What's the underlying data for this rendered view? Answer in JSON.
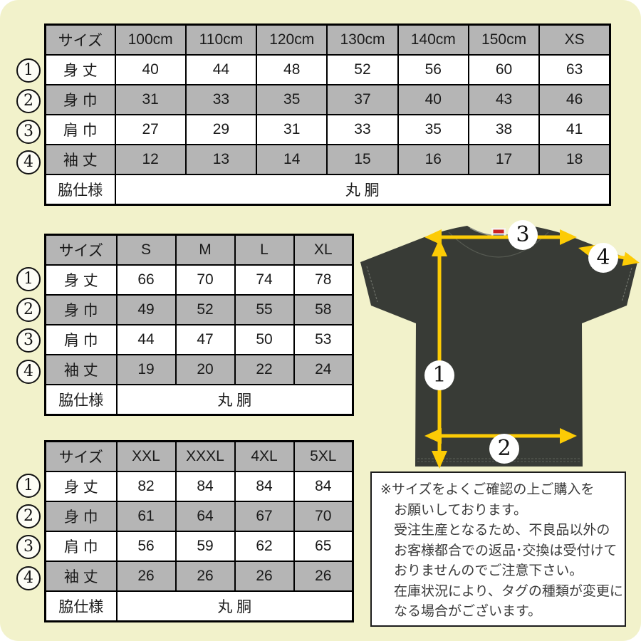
{
  "markers": [
    "1",
    "2",
    "3",
    "4"
  ],
  "tables": [
    {
      "id": "kids-xs",
      "size_label": "サイズ",
      "header": [
        "100cm",
        "110cm",
        "120cm",
        "130cm",
        "140cm",
        "150cm",
        "XS"
      ],
      "rows": [
        {
          "marker": "1",
          "label": "身 丈",
          "values": [
            "40",
            "44",
            "48",
            "52",
            "56",
            "60",
            "63"
          ]
        },
        {
          "marker": "2",
          "label": "身 巾",
          "values": [
            "31",
            "33",
            "35",
            "37",
            "40",
            "43",
            "46"
          ]
        },
        {
          "marker": "3",
          "label": "肩 巾",
          "values": [
            "27",
            "29",
            "31",
            "33",
            "35",
            "38",
            "41"
          ]
        },
        {
          "marker": "4",
          "label": "袖 丈",
          "values": [
            "12",
            "13",
            "14",
            "15",
            "16",
            "17",
            "18"
          ]
        }
      ],
      "footer_label": "脇仕様",
      "footer_value": "丸 胴"
    },
    {
      "id": "s-xl",
      "size_label": "サイズ",
      "header": [
        "S",
        "M",
        "L",
        "XL"
      ],
      "rows": [
        {
          "marker": "1",
          "label": "身 丈",
          "values": [
            "66",
            "70",
            "74",
            "78"
          ]
        },
        {
          "marker": "2",
          "label": "身 巾",
          "values": [
            "49",
            "52",
            "55",
            "58"
          ]
        },
        {
          "marker": "3",
          "label": "肩 巾",
          "values": [
            "44",
            "47",
            "50",
            "53"
          ]
        },
        {
          "marker": "4",
          "label": "袖 丈",
          "values": [
            "19",
            "20",
            "22",
            "24"
          ]
        }
      ],
      "footer_label": "脇仕様",
      "footer_value": "丸 胴"
    },
    {
      "id": "xxl-5xl",
      "size_label": "サイズ",
      "header": [
        "XXL",
        "XXXL",
        "4XL",
        "5XL"
      ],
      "rows": [
        {
          "marker": "1",
          "label": "身 丈",
          "values": [
            "82",
            "84",
            "84",
            "84"
          ]
        },
        {
          "marker": "2",
          "label": "身 巾",
          "values": [
            "61",
            "64",
            "67",
            "70"
          ]
        },
        {
          "marker": "3",
          "label": "肩 巾",
          "values": [
            "56",
            "59",
            "62",
            "65"
          ]
        },
        {
          "marker": "4",
          "label": "袖 丈",
          "values": [
            "26",
            "26",
            "26",
            "26"
          ]
        }
      ],
      "footer_label": "脇仕様",
      "footer_value": "丸 胴"
    }
  ],
  "note": {
    "lines": [
      "※サイズをよくご確認の上ご購入を",
      "お願いしております。",
      "受注生産となるため、不良品以外の",
      "お客様都合での返品･交換は受付けて",
      "おりませんのでご注意下さい。",
      "在庫状況により、タグの種類が変更に",
      "なる場合がございます。"
    ]
  },
  "colors": {
    "background": "#f2f2cb",
    "table_shade_gray": "#b5b5b5",
    "arrow_yellow": "#fccb05",
    "shirt_dark": "#383b36"
  }
}
